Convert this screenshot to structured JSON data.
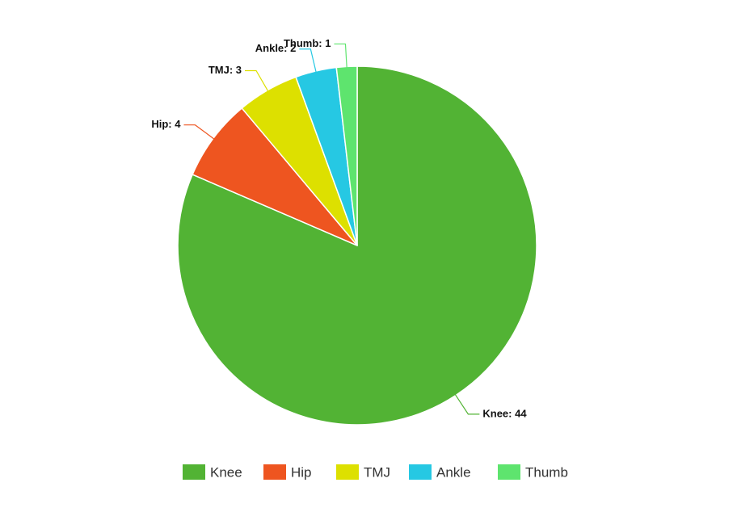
{
  "chart_data": {
    "type": "pie",
    "categories": [
      "Knee",
      "Hip",
      "TMJ",
      "Ankle",
      "Thumb"
    ],
    "values": [
      44,
      4,
      3,
      2,
      1
    ],
    "value_labels": [
      "Knee: 44",
      "Hip: 4",
      "TMJ: 3",
      "Ankle: 2",
      "Thumb: 1"
    ],
    "colors": [
      "#52b334",
      "#ee5520",
      "#dde000",
      "#26c8e3",
      "#5ee46e"
    ],
    "legend": "bottom"
  }
}
